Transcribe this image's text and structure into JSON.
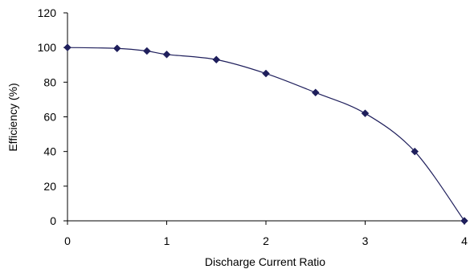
{
  "chart_data": {
    "type": "scatter",
    "xlabel": "Discharge Current Ratio",
    "ylabel": "Efficiency (%)",
    "xlim": [
      0,
      4
    ],
    "ylim": [
      0,
      120
    ],
    "x_ticks": [
      0,
      1,
      2,
      3,
      4
    ],
    "y_ticks": [
      0,
      20,
      40,
      60,
      80,
      100,
      120
    ],
    "grid": false,
    "legend": "none",
    "smoothed_line": true,
    "series": [
      {
        "color": "#1f1f5c",
        "marker": "diamond",
        "x": [
          0,
          0.5,
          0.8,
          1.0,
          1.5,
          2.0,
          2.5,
          3.0,
          3.5,
          4.0
        ],
        "y": [
          100,
          99.5,
          98,
          96,
          93,
          85,
          74,
          62,
          40,
          0
        ]
      }
    ]
  }
}
